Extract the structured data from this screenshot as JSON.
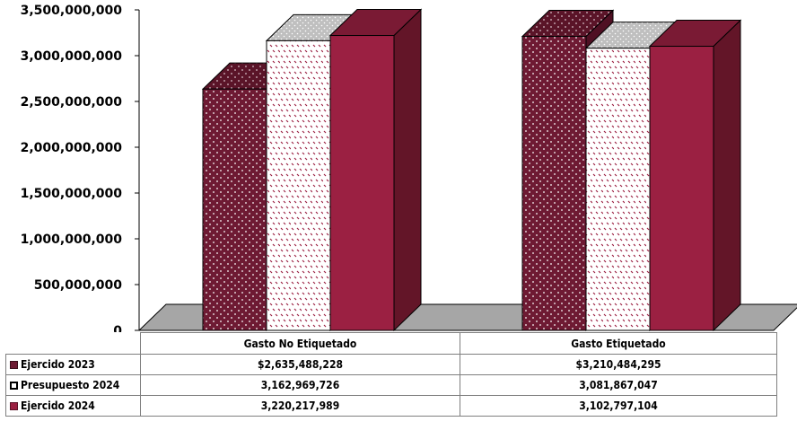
{
  "chart_data": {
    "type": "bar",
    "categories": [
      "Gasto No Etiquetado",
      "Gasto Etiquetado"
    ],
    "series": [
      {
        "name": "Ejercido 2023",
        "values": [
          2635488228,
          3210484295
        ],
        "labels": [
          "$2,635,488,228",
          "$3,210,484,295"
        ],
        "color": "#6e1a33",
        "pattern": "dots"
      },
      {
        "name": "Presupuesto 2024",
        "values": [
          3162969726,
          3081867047
        ],
        "labels": [
          "3,162,969,726",
          "3,081,867,047"
        ],
        "color": "#ffffff",
        "pattern": "checks"
      },
      {
        "name": "Ejercido 2024",
        "values": [
          3220217989,
          3102797104
        ],
        "labels": [
          "3,220,217,989",
          "3,102,797,104"
        ],
        "color": "#9b2042",
        "pattern": "solid"
      }
    ],
    "yticks": [
      "0",
      "500,000,000",
      "1,000,000,000",
      "1,500,000,000",
      "2,000,000,000",
      "2,500,000,000",
      "3,000,000,000",
      "3,500,000,000"
    ],
    "ylim": [
      0,
      3500000000
    ],
    "grid": false,
    "style": "3d clustered column with data table",
    "floor_color": "#a6a6a6"
  }
}
